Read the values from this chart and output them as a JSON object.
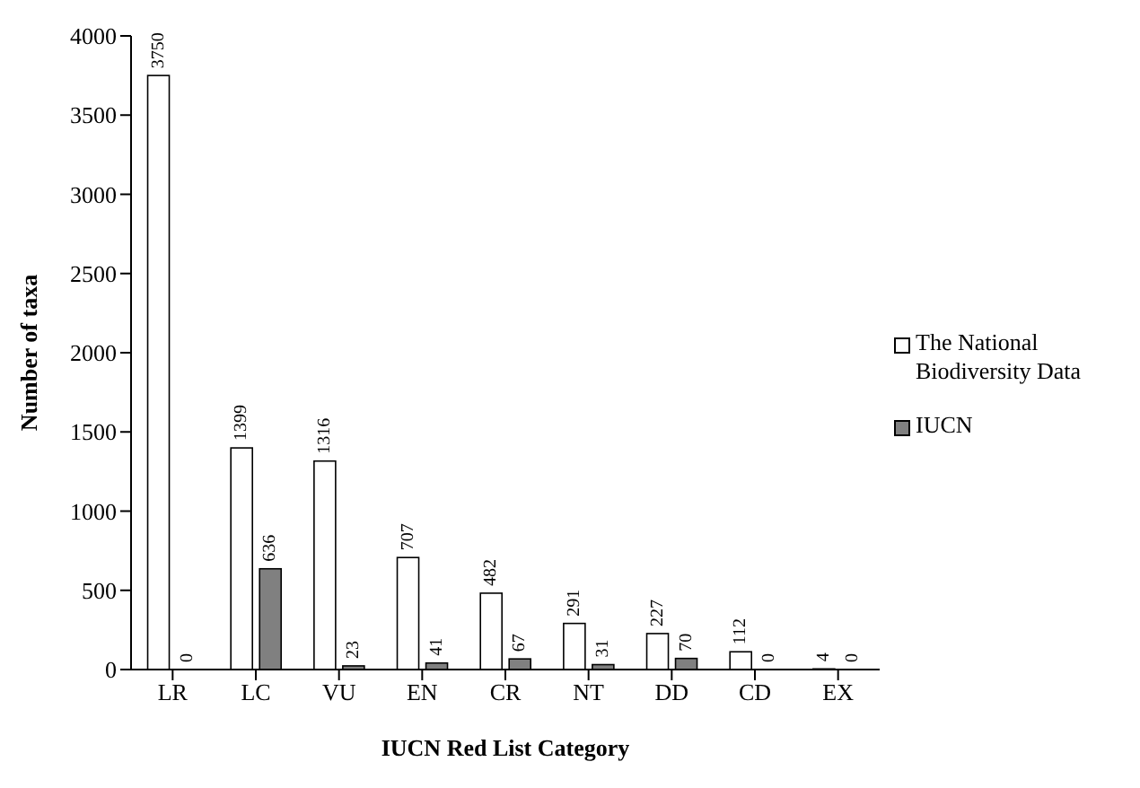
{
  "chart_data": {
    "type": "bar",
    "xlabel": "IUCN Red List Category",
    "ylabel": "Number of taxa",
    "categories": [
      "LR",
      "LC",
      "VU",
      "EN",
      "CR",
      "NT",
      "DD",
      "CD",
      "EX"
    ],
    "series": [
      {
        "name": "The National Biodiversity Data",
        "color": "#ffffff",
        "values": [
          3750,
          1399,
          1316,
          707,
          482,
          291,
          227,
          112,
          4
        ]
      },
      {
        "name": "IUCN",
        "color": "#808080",
        "values": [
          0,
          636,
          23,
          41,
          67,
          31,
          70,
          0,
          0
        ]
      }
    ],
    "ylim": [
      0,
      4000
    ],
    "yticks": [
      0,
      500,
      1000,
      1500,
      2000,
      2500,
      3000,
      3500,
      4000
    ],
    "grid": false,
    "legend": "right",
    "data_labels": true
  }
}
